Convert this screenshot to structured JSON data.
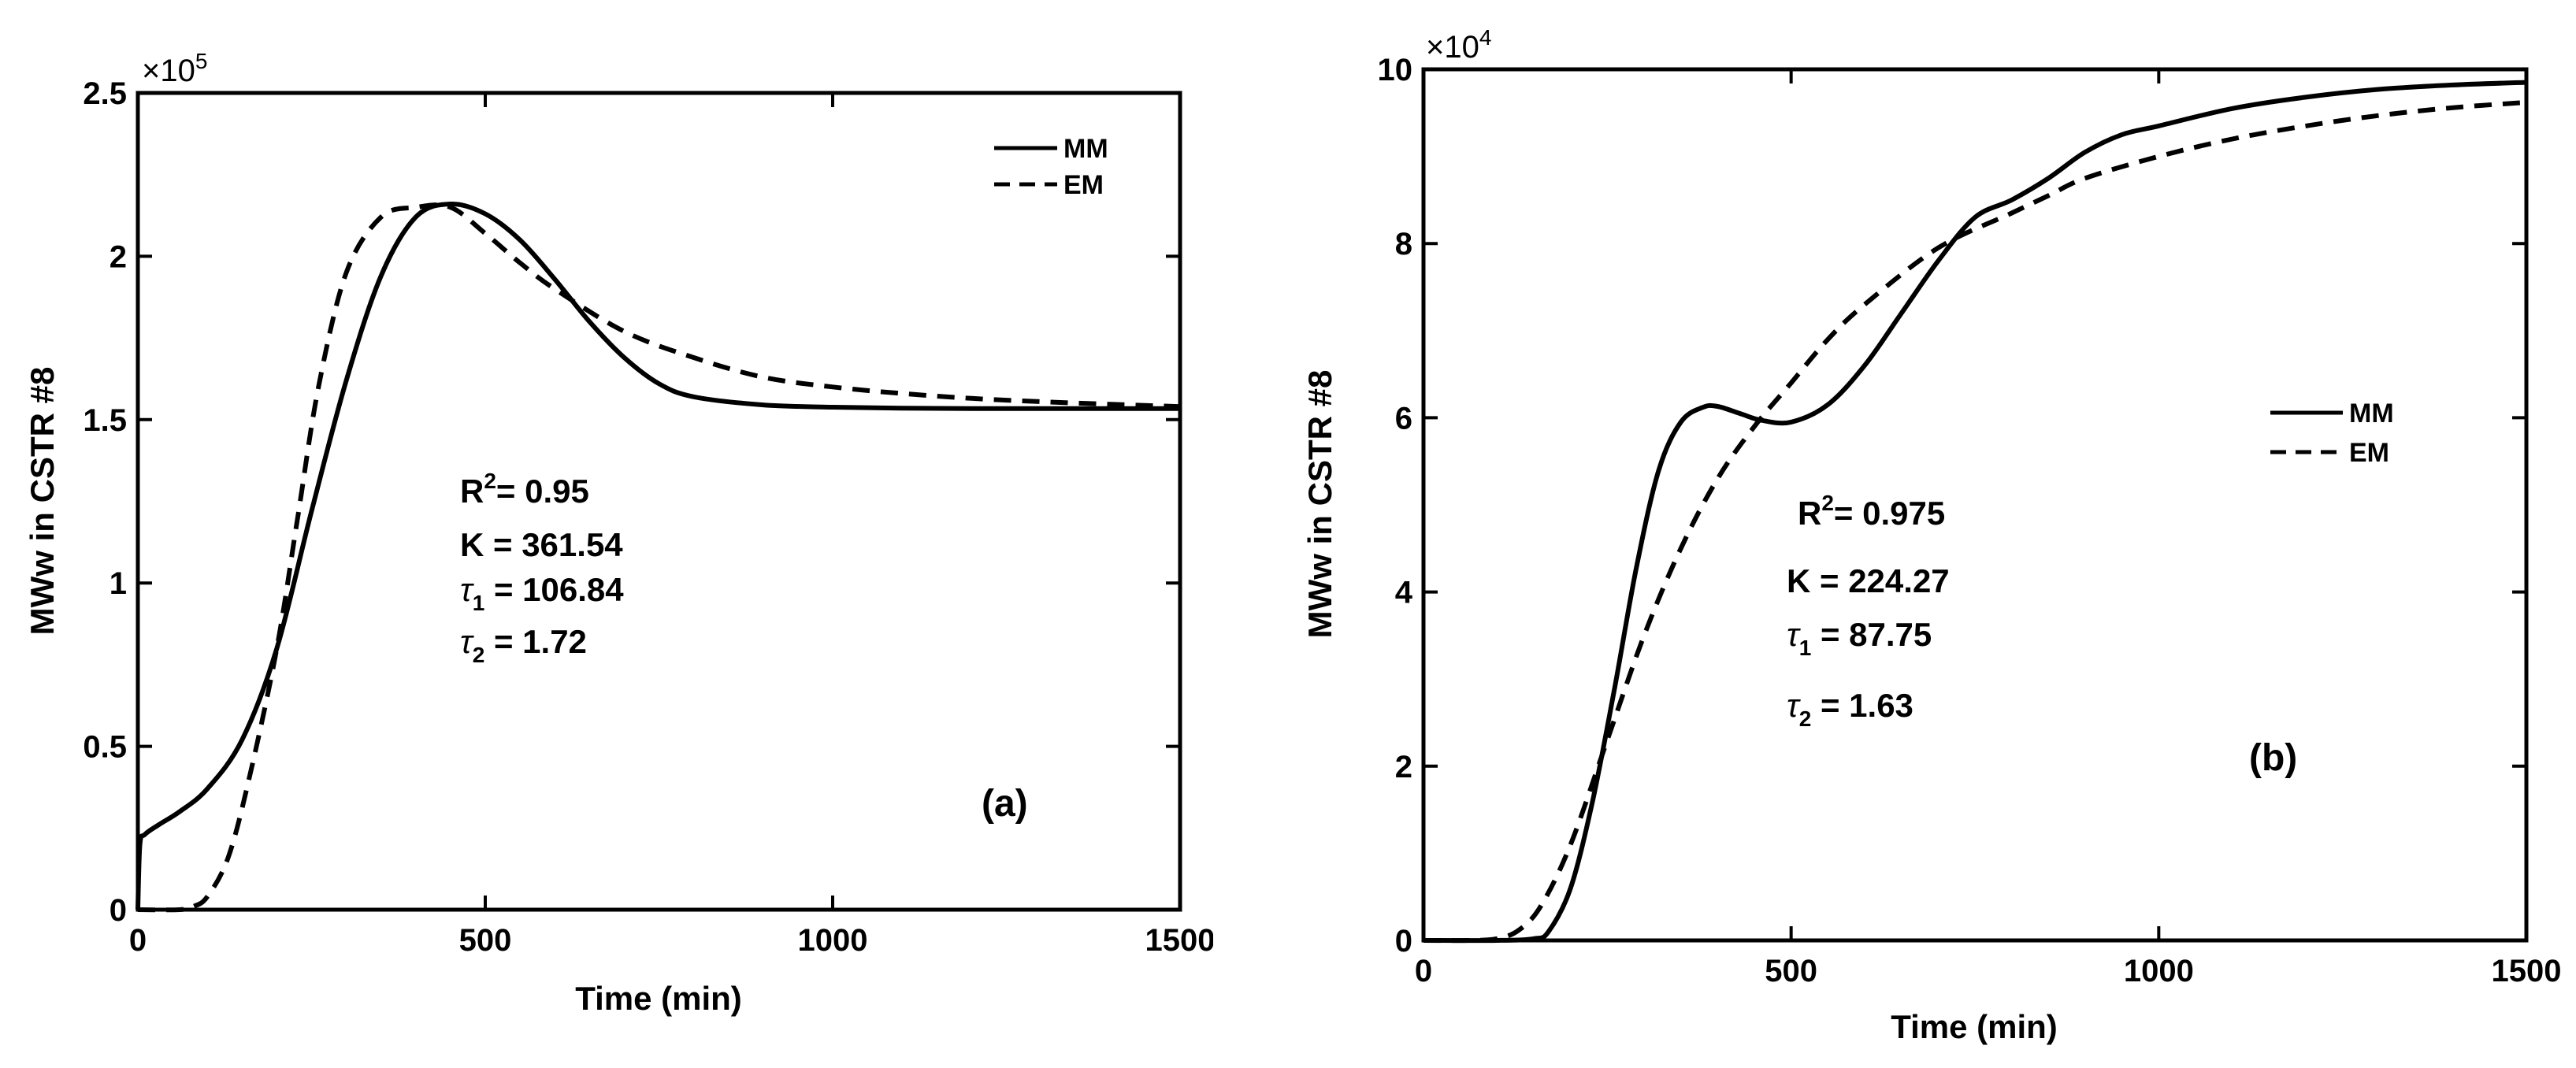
{
  "chart_data": [
    {
      "type": "line",
      "panel_label": "(a)",
      "xlabel": "Time (min)",
      "ylabel": "MWw in CSTR #8",
      "xlim": [
        0,
        1500
      ],
      "ylim": [
        0,
        2.5
      ],
      "y_multiplier": "×10",
      "y_multiplier_exp": "5",
      "xticks": [
        0,
        500,
        1000,
        1500
      ],
      "xtick_labels": [
        "0",
        "500",
        "1000",
        "1500"
      ],
      "yticks": [
        0,
        0.5,
        1,
        1.5,
        2,
        2.5
      ],
      "ytick_labels": [
        "0",
        "0.5",
        "1",
        "1.5",
        "2",
        "2.5"
      ],
      "legend_position": "top-right",
      "series": [
        {
          "name": "MM",
          "style": "solid",
          "x": [
            0,
            3,
            10,
            30,
            60,
            100,
            150,
            200,
            250,
            300,
            350,
            400,
            450,
            500,
            550,
            600,
            650,
            700,
            750,
            800,
            900,
            1000,
            1100,
            1200,
            1300,
            1400,
            1500
          ],
          "y": [
            0,
            0.2,
            0.23,
            0.26,
            0.3,
            0.37,
            0.52,
            0.8,
            1.22,
            1.62,
            1.94,
            2.12,
            2.16,
            2.13,
            2.05,
            1.93,
            1.8,
            1.69,
            1.61,
            1.57,
            1.545,
            1.538,
            1.535,
            1.534,
            1.534,
            1.534,
            1.534
          ]
        },
        {
          "name": "EM",
          "style": "dashed",
          "x": [
            0,
            60,
            80,
            100,
            130,
            160,
            200,
            230,
            260,
            300,
            350,
            400,
            450,
            500,
            550,
            600,
            700,
            800,
            900,
            1000,
            1100,
            1200,
            1300,
            1400,
            1500
          ],
          "y": [
            0,
            0,
            0.01,
            0.04,
            0.16,
            0.4,
            0.8,
            1.2,
            1.6,
            1.95,
            2.12,
            2.15,
            2.15,
            2.07,
            1.98,
            1.9,
            1.77,
            1.69,
            1.63,
            1.6,
            1.58,
            1.565,
            1.555,
            1.547,
            1.54
          ]
        }
      ],
      "annotations": {
        "r2_label": "R",
        "r2_exp": "2",
        "r2_value": "= 0.95",
        "k_text": "K = 361.54",
        "tau_symbol": "τ",
        "tau1_sub": "1",
        "tau1_value": " = 106.84",
        "tau2_sub": "2",
        "tau2_value": " = 1.72"
      }
    },
    {
      "type": "line",
      "panel_label": "(b)",
      "xlabel": "Time (min)",
      "ylabel": "MWw in CSTR #8",
      "xlim": [
        0,
        1500
      ],
      "ylim": [
        0,
        10
      ],
      "y_multiplier": "×10",
      "y_multiplier_exp": "4",
      "xticks": [
        0,
        500,
        1000,
        1500
      ],
      "xtick_labels": [
        "0",
        "500",
        "1000",
        "1500"
      ],
      "yticks": [
        0,
        2,
        4,
        6,
        8,
        10
      ],
      "ytick_labels": [
        "0",
        "2",
        "4",
        "6",
        "8",
        "10"
      ],
      "legend_position": "center-right",
      "series": [
        {
          "name": "MM",
          "style": "solid",
          "x": [
            0,
            100,
            150,
            170,
            200,
            230,
            260,
            290,
            320,
            350,
            380,
            400,
            430,
            460,
            500,
            550,
            600,
            650,
            700,
            750,
            800,
            850,
            900,
            950,
            1000,
            1100,
            1200,
            1300,
            1400,
            1500
          ],
          "y": [
            0,
            0,
            0.02,
            0.1,
            0.6,
            1.6,
            2.9,
            4.3,
            5.4,
            5.95,
            6.12,
            6.13,
            6.05,
            5.97,
            5.95,
            6.15,
            6.6,
            7.2,
            7.8,
            8.3,
            8.5,
            8.75,
            9.05,
            9.25,
            9.35,
            9.55,
            9.68,
            9.77,
            9.82,
            9.85
          ]
        },
        {
          "name": "EM",
          "style": "dashed",
          "x": [
            0,
            60,
            100,
            130,
            160,
            200,
            250,
            300,
            350,
            400,
            450,
            500,
            550,
            600,
            700,
            800,
            850,
            900,
            1000,
            1100,
            1200,
            1300,
            1400,
            1500
          ],
          "y": [
            0,
            0,
            0.02,
            0.12,
            0.4,
            1.1,
            2.3,
            3.5,
            4.5,
            5.3,
            5.9,
            6.4,
            6.9,
            7.3,
            7.95,
            8.35,
            8.55,
            8.75,
            9.0,
            9.2,
            9.35,
            9.47,
            9.56,
            9.62
          ]
        }
      ],
      "annotations": {
        "r2_label": "R",
        "r2_exp": "2",
        "r2_value": "= 0.975",
        "k_text": "K = 224.27",
        "tau_symbol": "τ",
        "tau1_sub": "1",
        "tau1_value": " = 87.75",
        "tau2_sub": "2",
        "tau2_value": " = 1.63"
      }
    }
  ]
}
